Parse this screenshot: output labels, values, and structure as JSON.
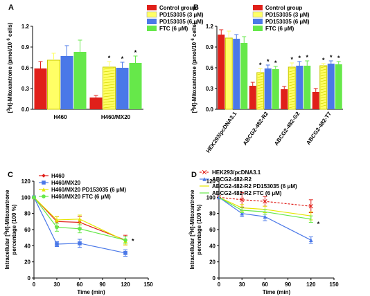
{
  "colors": {
    "red": "#E0201A",
    "yellow": "#FFFF66",
    "blue": "#4A78E8",
    "green": "#66E84A",
    "black": "#000000"
  },
  "chart_data": [
    {
      "panel": "A",
      "type": "bar",
      "ylabel_prefix": "[",
      "ylabel_sup": "3",
      "ylabel_rest": "H]-Mitoxantrone (pmol/10",
      "ylabel_sup2": "6",
      "ylabel_end": "cells)",
      "ylim": [
        0,
        1.2
      ],
      "yticks": [
        "0.0",
        "0.3",
        "0.6",
        "0.9",
        "1.2"
      ],
      "categories": [
        "H460",
        "H460/MX20"
      ],
      "legend": [
        "Control group",
        "PD153035 (3 μM)",
        "PD153035 (6 μM)",
        "FTC (6 μM)"
      ],
      "series": [
        {
          "name": "Control group",
          "values": [
            0.59,
            0.17
          ],
          "errors": [
            0.1,
            0.03
          ],
          "sig": [
            "",
            ""
          ]
        },
        {
          "name": "PD153035 (3 μM)",
          "values": [
            0.71,
            0.61
          ],
          "errors": [
            0.1,
            0.08
          ],
          "sig": [
            "",
            "*"
          ]
        },
        {
          "name": "PD153035 (6 μM)",
          "values": [
            0.77,
            0.6
          ],
          "errors": [
            0.15,
            0.08
          ],
          "sig": [
            "",
            "*"
          ]
        },
        {
          "name": "FTC (6 μM)",
          "values": [
            0.83,
            0.67
          ],
          "errors": [
            0.17,
            0.1
          ],
          "sig": [
            "",
            "*"
          ]
        }
      ]
    },
    {
      "panel": "B",
      "type": "bar",
      "ylabel_prefix": "[",
      "ylabel_sup": "3",
      "ylabel_rest": "H]-Mitoxantrone (pmol/10",
      "ylabel_sup2": "6",
      "ylabel_end": "cells)",
      "ylim": [
        0,
        1.2
      ],
      "yticks": [
        "0.0",
        "0.3",
        "0.6",
        "0.9",
        "1.2"
      ],
      "categories": [
        "HEK293/pcDNA3.1",
        "ABCG2-482-R2",
        "ABCG2-482-G2",
        "ABCG2-482-T7"
      ],
      "legend": [
        "Control group",
        "PD153035 (3 μM)",
        "PD153035 (6 μM)",
        "FTC (6 μM)"
      ],
      "series": [
        {
          "name": "Control group",
          "values": [
            1.08,
            0.34,
            0.29,
            0.25
          ],
          "errors": [
            0.07,
            0.05,
            0.04,
            0.05
          ],
          "sig": [
            "",
            "",
            "",
            ""
          ]
        },
        {
          "name": "PD153035 (3 μM)",
          "values": [
            1.03,
            0.53,
            0.61,
            0.63
          ],
          "errors": [
            0.1,
            0.06,
            0.06,
            0.03
          ],
          "sig": [
            "",
            "*",
            "*",
            "*"
          ]
        },
        {
          "name": "PD153035 (6 μM)",
          "values": [
            1.02,
            0.59,
            0.63,
            0.66
          ],
          "errors": [
            0.06,
            0.05,
            0.06,
            0.04
          ],
          "sig": [
            "",
            "*",
            "*",
            "*"
          ]
        },
        {
          "name": "FTC (6 μM)",
          "values": [
            0.96,
            0.58,
            0.63,
            0.65
          ],
          "errors": [
            0.09,
            0.04,
            0.07,
            0.04
          ],
          "sig": [
            "",
            "*",
            "*",
            "*"
          ]
        }
      ]
    },
    {
      "panel": "C",
      "type": "line",
      "ylabel_line1": "Intracellular [",
      "ylabel_sup": "3",
      "ylabel_line1_end": "H]-Mitoxantrone",
      "ylabel_line2": "percentage (100 %)",
      "xlabel": "Time (min)",
      "xlim": [
        0,
        150
      ],
      "ylim": [
        0,
        120
      ],
      "xticks": [
        "0",
        "30",
        "60",
        "90",
        "120",
        "150"
      ],
      "yticks": [
        "0",
        "20",
        "40",
        "60",
        "80",
        "100",
        "120"
      ],
      "x": [
        0,
        30,
        60,
        120
      ],
      "series": [
        {
          "name": "H460",
          "values": [
            100,
            70,
            69,
            47
          ],
          "errors": [
            0,
            6,
            7,
            6
          ],
          "style": "red-diamond"
        },
        {
          "name": "H460/MX20",
          "values": [
            100,
            42,
            43,
            31
          ],
          "errors": [
            0,
            3,
            5,
            4
          ],
          "style": "blue-square"
        },
        {
          "name": "H460/MX20 PD153035 (6 μM)",
          "values": [
            100,
            72,
            73,
            46
          ],
          "errors": [
            0,
            4,
            5,
            5
          ],
          "style": "yellow-triangle"
        },
        {
          "name": "H460/MX20 FTC (6 μM)",
          "values": [
            100,
            63,
            61,
            47
          ],
          "errors": [
            0,
            5,
            5,
            4
          ],
          "style": "green-circle"
        }
      ],
      "annotation": "*"
    },
    {
      "panel": "D",
      "type": "line",
      "ylabel_line1": "Intracellular [",
      "ylabel_sup": "3",
      "ylabel_line1_end": "H]-Mitoxantrone",
      "ylabel_line2": "percentage (100 %)",
      "xlabel": "Time (min)",
      "xlim": [
        0,
        150
      ],
      "ylim": [
        0,
        120
      ],
      "xticks": [
        "0",
        "30",
        "60",
        "90",
        "120",
        "150"
      ],
      "yticks": [
        "0",
        "20",
        "40",
        "60",
        "80",
        "100",
        "120"
      ],
      "x": [
        0,
        30,
        60,
        120
      ],
      "series": [
        {
          "name": "HEK293/pcDNA3.1",
          "values": [
            100,
            97,
            95,
            89
          ],
          "errors": [
            0,
            9,
            6,
            8
          ],
          "style": "red-dash"
        },
        {
          "name": "ABCG2-482-R2",
          "values": [
            100,
            80,
            76,
            47
          ],
          "errors": [
            0,
            4,
            5,
            4
          ],
          "style": "blue-triangle"
        },
        {
          "name": "ABCG2-482-R2 PD153035 (6 μM)",
          "values": [
            100,
            87,
            85,
            77
          ],
          "errors": [
            0,
            4,
            4,
            5
          ],
          "style": "yellow-line"
        },
        {
          "name": "ABCG2-482-R2 FTC (6 μM)",
          "values": [
            100,
            84,
            82,
            73
          ],
          "errors": [
            0,
            3,
            3,
            4
          ],
          "style": "green-line"
        }
      ],
      "annotation": "*"
    }
  ]
}
